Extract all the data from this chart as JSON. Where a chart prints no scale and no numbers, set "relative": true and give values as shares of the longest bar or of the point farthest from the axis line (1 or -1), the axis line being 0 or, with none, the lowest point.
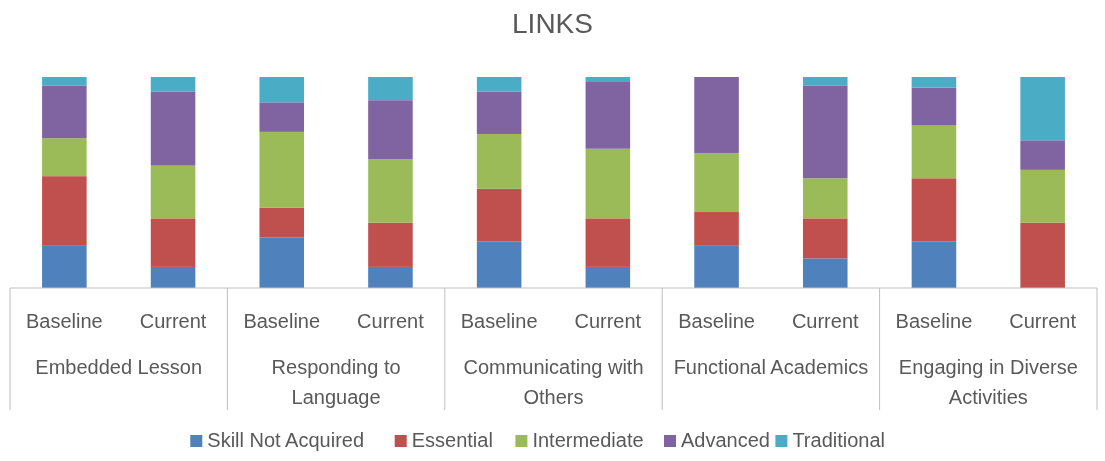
{
  "chart_data": {
    "type": "bar",
    "title": "LINKS",
    "stacked": true,
    "relative": true,
    "legend": "bottom",
    "categories": [
      "Baseline",
      "Current",
      "Baseline",
      "Current",
      "Baseline",
      "Current",
      "Baseline",
      "Current",
      "Baseline",
      "Current"
    ],
    "annotations": [
      "Embedded Lesson",
      "Responding to Language",
      "Communicating with Others",
      "Functional Academics",
      "Engaging in Diverse Activities"
    ],
    "series": [
      {
        "name": "Skill Not Acquired",
        "color": "#4f81bd",
        "values": [
          0.2,
          0.1,
          0.24,
          0.1,
          0.22,
          0.1,
          0.2,
          0.14,
          0.22,
          0
        ]
      },
      {
        "name": "Essential",
        "color": "#c0504d",
        "values": [
          0.33,
          0.23,
          0.14,
          0.21,
          0.25,
          0.23,
          0.16,
          0.19,
          0.3,
          0.31
        ]
      },
      {
        "name": "Intermediate",
        "color": "#9bbb59",
        "values": [
          0.18,
          0.25,
          0.36,
          0.3,
          0.26,
          0.33,
          0.28,
          0.19,
          0.25,
          0.25
        ]
      },
      {
        "name": "Advanced",
        "color": "#8064a2",
        "values": [
          0.25,
          0.35,
          0.14,
          0.28,
          0.2,
          0.32,
          0.36,
          0.44,
          0.18,
          0.14
        ]
      },
      {
        "name": "Traditional",
        "color": "#4bacc6",
        "values": [
          0.04,
          0.07,
          0.12,
          0.11,
          0.07,
          0.02,
          0,
          0.04,
          0.05,
          0.3
        ]
      }
    ]
  }
}
